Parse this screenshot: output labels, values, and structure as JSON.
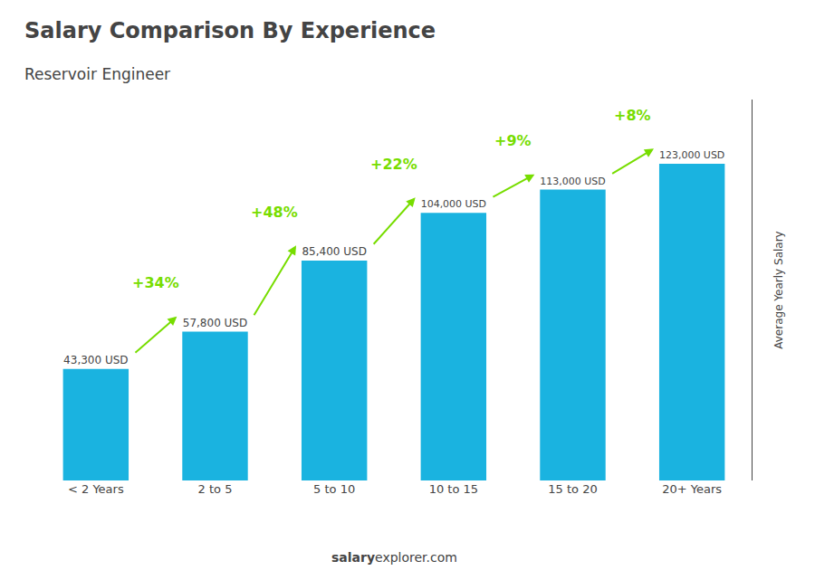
{
  "chart_data": {
    "type": "bar",
    "title": "Salary Comparison By Experience",
    "subtitle": "Reservoir Engineer",
    "categories": [
      "< 2 Years",
      "2 to 5",
      "5 to 10",
      "10 to 15",
      "15 to 20",
      "20+ Years"
    ],
    "values": [
      43300,
      57800,
      85400,
      104000,
      113000,
      123000
    ],
    "value_labels": [
      "43,300 USD",
      "57,800 USD",
      "85,400 USD",
      "104,000 USD",
      "113,000 USD",
      "123,000 USD"
    ],
    "data_labels": true,
    "color": "#1ab3e0",
    "annotations": [
      {
        "text": "+34%",
        "color": "#77dd00"
      },
      {
        "text": "+48%",
        "color": "#77dd00"
      },
      {
        "text": "+22%",
        "color": "#77dd00"
      },
      {
        "text": "+9%",
        "color": "#77dd00"
      },
      {
        "text": "+8%",
        "color": "#77dd00"
      }
    ],
    "ylabel": "Average Yearly Salary",
    "ylim": [
      0,
      148000
    ],
    "yticks": [],
    "tick_labels": "x",
    "grid": false,
    "footer": [
      "salary",
      "explorer.com"
    ]
  }
}
